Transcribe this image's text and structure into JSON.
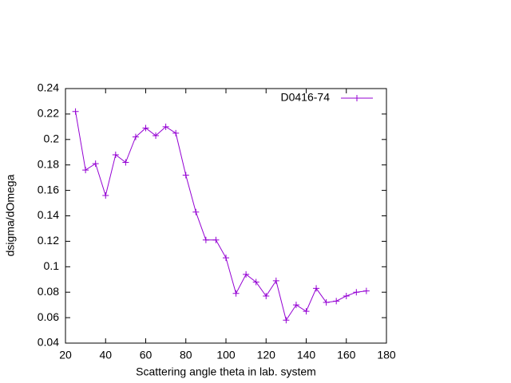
{
  "chart_data": {
    "type": "line",
    "xlabel": "Scattering angle theta in lab. system",
    "ylabel": "dsigma/dOmega",
    "x": [
      25,
      30,
      35,
      40,
      45,
      50,
      55,
      60,
      65,
      70,
      75,
      80,
      85,
      90,
      95,
      100,
      105,
      110,
      115,
      120,
      125,
      130,
      135,
      140,
      145,
      150,
      155,
      160,
      165,
      170
    ],
    "series": [
      {
        "name": "D0416-74",
        "color": "#9400d3",
        "values": [
          0.222,
          0.176,
          0.181,
          0.156,
          0.188,
          0.182,
          0.202,
          0.209,
          0.203,
          0.21,
          0.205,
          0.172,
          0.143,
          0.121,
          0.121,
          0.107,
          0.079,
          0.094,
          0.088,
          0.077,
          0.089,
          0.058,
          0.07,
          0.065,
          0.083,
          0.072,
          0.073,
          0.077,
          0.08,
          0.081
        ]
      }
    ],
    "xlim": [
      20,
      180
    ],
    "xticks": [
      20,
      40,
      60,
      80,
      100,
      120,
      140,
      160,
      180
    ],
    "ylim": [
      0.04,
      0.24
    ],
    "yticks": [
      0.04,
      0.06,
      0.08,
      0.1,
      0.12,
      0.14,
      0.16,
      0.18,
      0.2,
      0.22,
      0.24
    ],
    "legend": "top-right",
    "marker": "plus"
  }
}
